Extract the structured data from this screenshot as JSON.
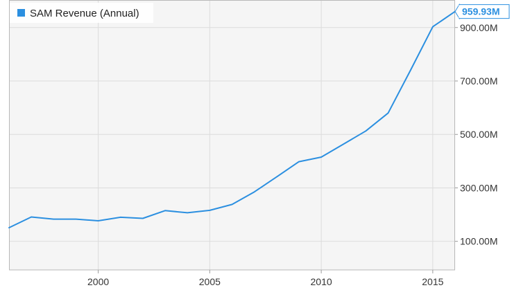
{
  "chart_data": {
    "type": "line",
    "series": [
      {
        "name": "SAM Revenue (Annual)",
        "color": "#2b8fe0",
        "x": [
          1996,
          1997,
          1998,
          1999,
          2000,
          2001,
          2002,
          2003,
          2004,
          2005,
          2006,
          2007,
          2008,
          2009,
          2010,
          2011,
          2012,
          2013,
          2014,
          2015,
          2016
        ],
        "values": [
          151,
          191,
          183,
          183,
          177,
          190,
          186,
          215,
          207,
          216,
          238,
          285,
          341,
          398,
          415,
          464,
          513,
          580,
          740,
          903,
          959.93
        ]
      }
    ],
    "xlim": [
      1996,
      2016
    ],
    "ylim": [
      -7,
      1003
    ],
    "x_ticks": [
      2000,
      2005,
      2010,
      2015
    ],
    "x_tick_labels": [
      "2000",
      "2005",
      "2010",
      "2015"
    ],
    "y_ticks": [
      100,
      300,
      500,
      700,
      900
    ],
    "y_tick_labels": [
      "100.00M",
      "300.00M",
      "500.00M",
      "700.00M",
      "900.00M"
    ],
    "last_value_label": "959.93M",
    "legend_position": "top-left",
    "grid": true,
    "plot_background": "#f5f5f5",
    "grid_color": "#dcdcdc"
  }
}
